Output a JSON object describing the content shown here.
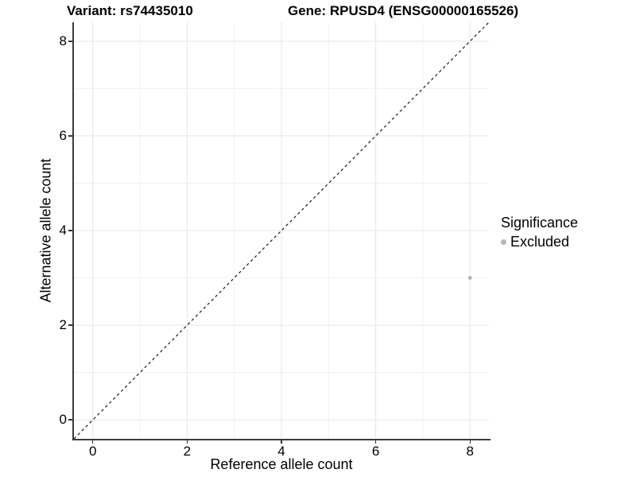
{
  "chart_data": {
    "type": "scatter",
    "title_left": "Variant: rs74435010",
    "title_right": "Gene: RPUSD4 (ENSG00000165526)",
    "xlabel": "Reference allele count",
    "ylabel": "Alternative allele count",
    "xlim": [
      -0.4,
      8.4
    ],
    "ylim": [
      -0.4,
      8.4
    ],
    "x_ticks": [
      0,
      2,
      4,
      6,
      8
    ],
    "y_ticks": [
      0,
      2,
      4,
      6,
      8
    ],
    "minor_gridlines": [
      1,
      3,
      5,
      7
    ],
    "grid": "on",
    "points": [
      {
        "x": 8,
        "y": 3,
        "series": "Excluded"
      }
    ],
    "reference_line": {
      "type": "identity y=x",
      "style": "dashed",
      "color": "#1a1a1a"
    },
    "legend": {
      "title": "Significance",
      "position": "right",
      "entries": [
        {
          "label": "Excluded",
          "color": "#b8b8b8"
        }
      ]
    },
    "colors": {
      "point": "#b3b3b3",
      "grid_major": "#e4e4e4",
      "grid_minor": "#f1f1f1",
      "axis_line": "#3c3c3c",
      "background": "#ffffff"
    }
  }
}
